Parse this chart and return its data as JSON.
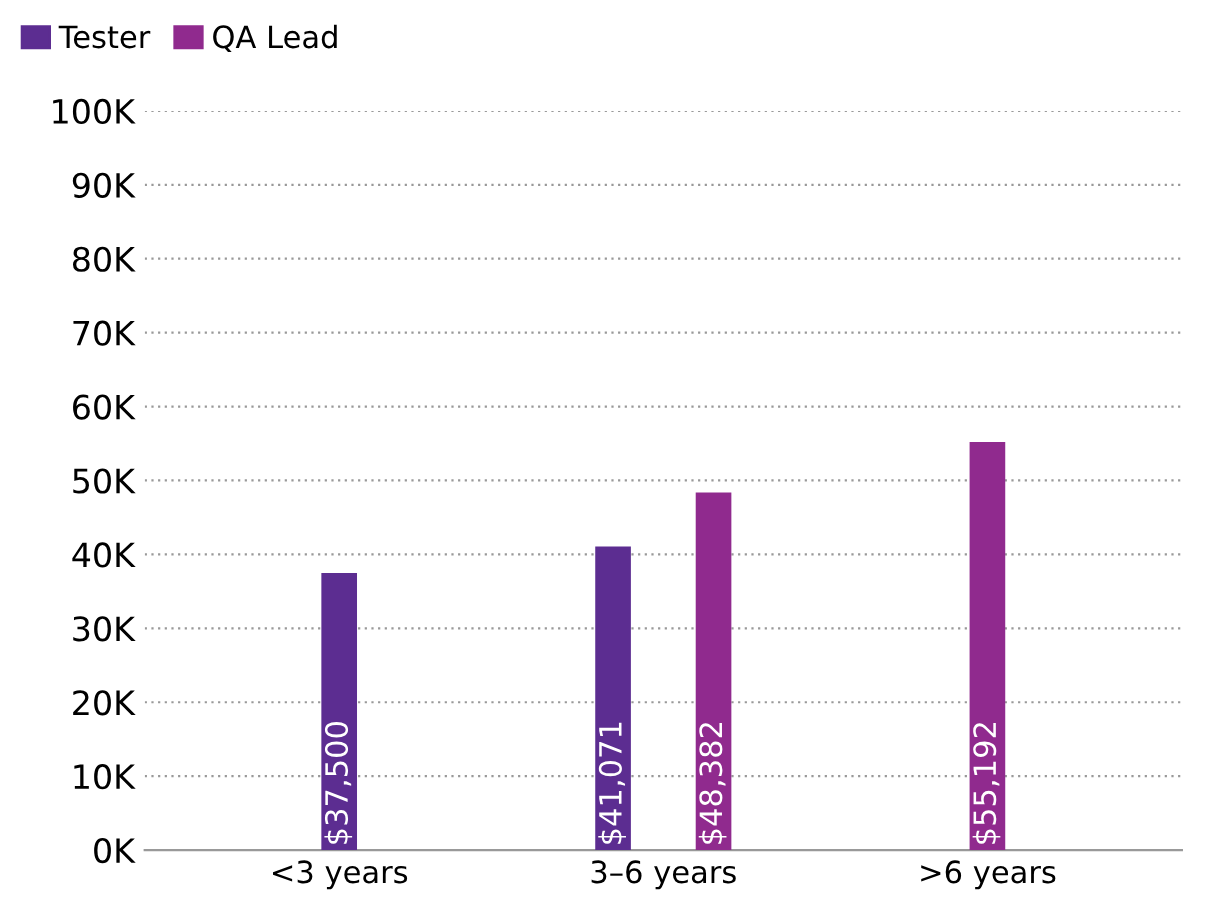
{
  "chart_data": {
    "type": "bar",
    "categories": [
      "<3 years",
      "3–6 years",
      ">6 years"
    ],
    "series": [
      {
        "name": "Tester",
        "color": "#5c2d91",
        "values": [
          37500,
          41071,
          null
        ],
        "value_labels": [
          "$37,500",
          "$41,071",
          null
        ]
      },
      {
        "name": "QA Lead",
        "color": "#902a8e",
        "values": [
          null,
          48382,
          55192
        ],
        "value_labels": [
          null,
          "$48,382",
          "$55,192"
        ]
      }
    ],
    "ylim": [
      0,
      100000
    ],
    "yticks": [
      {
        "value": 0,
        "label": "0K"
      },
      {
        "value": 10000,
        "label": "10K"
      },
      {
        "value": 20000,
        "label": "20K"
      },
      {
        "value": 30000,
        "label": "30K"
      },
      {
        "value": 40000,
        "label": "40K"
      },
      {
        "value": 50000,
        "label": "50K"
      },
      {
        "value": 60000,
        "label": "60K"
      },
      {
        "value": 70000,
        "label": "70K"
      },
      {
        "value": 80000,
        "label": "80K"
      },
      {
        "value": 90000,
        "label": "90K"
      },
      {
        "value": 100000,
        "label": "100K"
      }
    ],
    "grid": "y",
    "legend": "top left"
  }
}
